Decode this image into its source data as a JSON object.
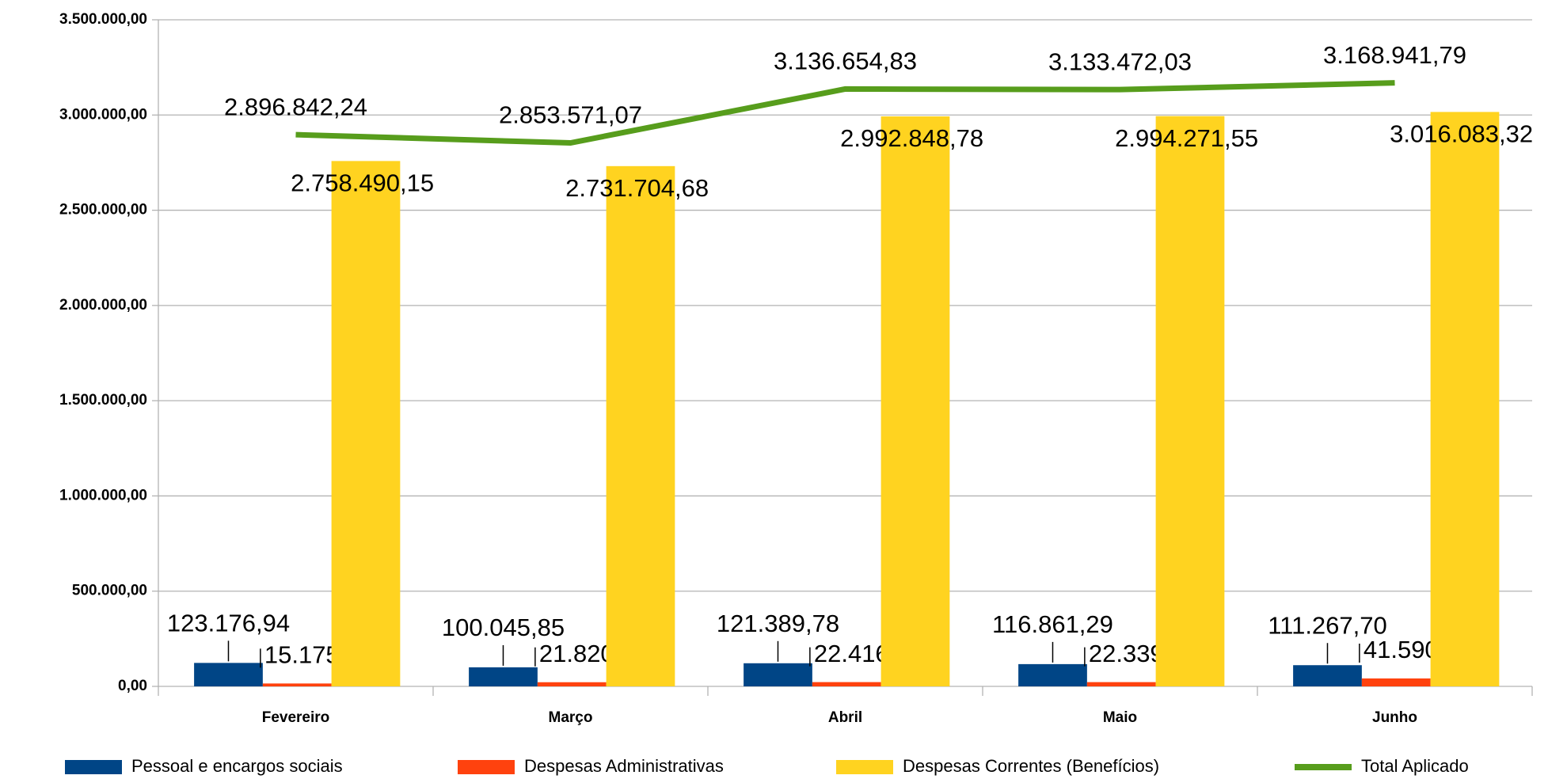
{
  "chart_data": {
    "type": "bar",
    "categories": [
      "Fevereiro",
      "Março",
      "Abril",
      "Maio",
      "Junho"
    ],
    "series": [
      {
        "name": "Pessoal e encargos sociais",
        "type": "bar",
        "color": "#004586",
        "values": [
          123176.94,
          100045.85,
          121389.78,
          116861.29,
          111267.7
        ],
        "value_labels": [
          "123.176,94",
          "100.045,85",
          "121.389,78",
          "116.861,29",
          "111.267,70"
        ]
      },
      {
        "name": "Despesas Administrativas",
        "type": "bar",
        "color": "#ff420e",
        "values": [
          15175.15,
          21820.54,
          22416.27,
          22339.19,
          41590.77
        ],
        "value_labels": [
          "15.175,15",
          "21.820,54",
          "22.416,27",
          "22.339,19",
          "41.590,77"
        ]
      },
      {
        "name": "Despesas Correntes (Benefícios)",
        "type": "bar",
        "color": "#ffd320",
        "values": [
          2758490.15,
          2731704.68,
          2992848.78,
          2994271.55,
          3016083.32
        ],
        "value_labels": [
          "2.758.490,15",
          "2.731.704,68",
          "2.992.848,78",
          "2.994.271,55",
          "3.016.083,32"
        ]
      },
      {
        "name": "Total Aplicado",
        "type": "line",
        "color": "#579d1c",
        "values": [
          2896842.24,
          2853571.07,
          3136654.83,
          3133472.03,
          3168941.79
        ],
        "value_labels": [
          "2.896.842,24",
          "2.853.571,07",
          "3.136.654,83",
          "3.133.472,03",
          "3.168.941,79"
        ]
      }
    ],
    "ylim": [
      0,
      3500000
    ],
    "yticks": [
      {
        "value": 0,
        "label": "0,00"
      },
      {
        "value": 500000,
        "label": "500.000,00"
      },
      {
        "value": 1000000,
        "label": "1.000.000,00"
      },
      {
        "value": 1500000,
        "label": "1.500.000,00"
      },
      {
        "value": 2000000,
        "label": "2.000.000,00"
      },
      {
        "value": 2500000,
        "label": "2.500.000,00"
      },
      {
        "value": 3000000,
        "label": "3.000.000,00"
      },
      {
        "value": 3500000,
        "label": "3.500.000,00"
      }
    ],
    "grid": true,
    "legend": "bottom"
  }
}
